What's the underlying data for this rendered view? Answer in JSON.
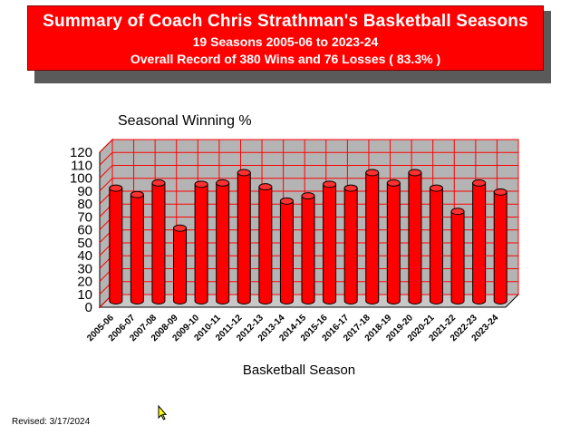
{
  "banner": {
    "title": "Summary of Coach Chris Strathman's Basketball Seasons",
    "subtitle1": "19 Seasons   2005-06 to 2023-24",
    "subtitle2": "Overall Record of 380 Wins and 76 Losses ( 83.3% )"
  },
  "footer": {
    "revised": "Revised: 3/17/2024"
  },
  "colors": {
    "bar": "#ff0000",
    "bar_side": "#b00000",
    "wall": "#b4b4b4",
    "grid": "#ff0000",
    "banner": "#ff0000"
  },
  "chart_data": {
    "type": "bar",
    "title": "Seasonal Winning %",
    "xlabel": "Basketball Season",
    "ylabel": "",
    "ylim": [
      0,
      120
    ],
    "yticks": [
      "0",
      "10",
      "20",
      "30",
      "40",
      "50",
      "60",
      "70",
      "80",
      "90",
      "100",
      "110",
      "120"
    ],
    "grid": true,
    "categories": [
      "2005-06",
      "2006-07",
      "2007-08",
      "2008-09",
      "2009-10",
      "2010-11",
      "2011-12",
      "2012-13",
      "2013-14",
      "2014-15",
      "2015-16",
      "2016-17",
      "2017-18",
      "2018-19",
      "2019-20",
      "2020-21",
      "2021-22",
      "2022-23",
      "2023-24"
    ],
    "values": [
      88,
      83,
      92,
      57,
      91,
      92,
      100,
      89,
      78,
      82,
      91,
      88,
      100,
      92,
      100,
      88,
      70,
      92,
      85
    ]
  }
}
